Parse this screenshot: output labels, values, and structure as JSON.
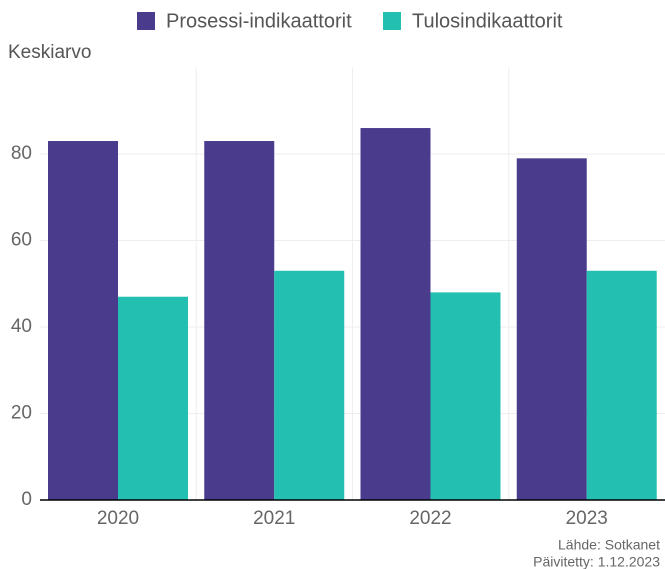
{
  "chart_data": {
    "type": "bar",
    "y_label": "Keskiarvo",
    "source": "Lähde: Sotkanet",
    "updated": "Päivitetty: 1.12.2023",
    "categories": [
      "2020",
      "2021",
      "2022",
      "2023"
    ],
    "series": [
      {
        "name": "Prosessi-indikaattorit",
        "color": "#4a3b8c",
        "values": [
          83,
          83,
          86,
          79
        ]
      },
      {
        "name": "Tulosindikaattorit",
        "color": "#23bfb0",
        "values": [
          47,
          53,
          48,
          53
        ]
      }
    ],
    "ylim": [
      0,
      100
    ],
    "yticks": [
      0,
      20,
      40,
      60,
      80
    ],
    "grid": true,
    "legend": "top"
  }
}
